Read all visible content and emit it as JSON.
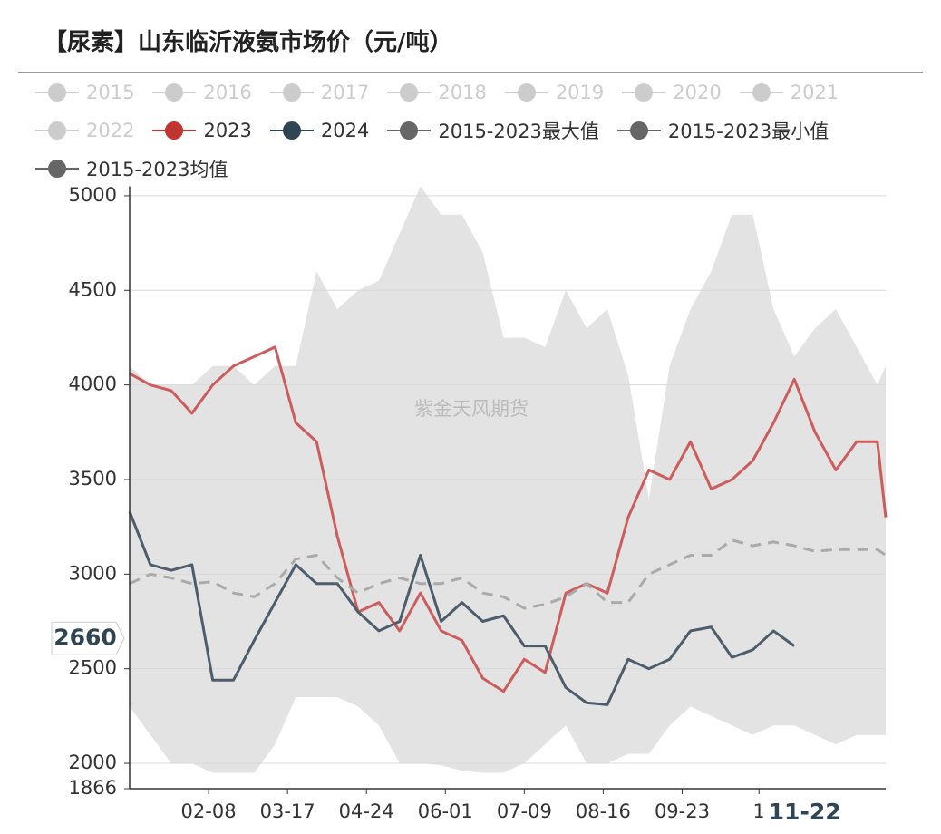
{
  "chart_data": {
    "type": "line",
    "title": "【尿素】山东临沂液氨市场价（元/吨）",
    "watermark": "紫金天风期货",
    "hidden_series": [
      {
        "name": "2015",
        "color": "#cccccc"
      },
      {
        "name": "2016",
        "color": "#cccccc"
      },
      {
        "name": "2017",
        "color": "#cccccc"
      },
      {
        "name": "2018",
        "color": "#cccccc"
      },
      {
        "name": "2019",
        "color": "#cccccc"
      },
      {
        "name": "2020",
        "color": "#cccccc"
      },
      {
        "name": "2021",
        "color": "#cccccc"
      },
      {
        "name": "2022",
        "color": "#cccccc"
      }
    ],
    "x": [
      0,
      10,
      20,
      30,
      40,
      50,
      60,
      70,
      80,
      90,
      100,
      110,
      120,
      130,
      140,
      150,
      160,
      170,
      180,
      190,
      200,
      210,
      220,
      230,
      240,
      250,
      260,
      270,
      280,
      290,
      300,
      310,
      320,
      330,
      340,
      350,
      360,
      364
    ],
    "xlim": [
      0,
      364
    ],
    "xticks": [
      {
        "value": 38,
        "label": "02-08"
      },
      {
        "value": 76,
        "label": "03-17"
      },
      {
        "value": 114,
        "label": "04-24"
      },
      {
        "value": 152,
        "label": "06-01"
      },
      {
        "value": 190,
        "label": "07-09"
      },
      {
        "value": 228,
        "label": "08-16"
      },
      {
        "value": 266,
        "label": "09-23"
      },
      {
        "value": 303,
        "label": "1"
      }
    ],
    "x_pointer": {
      "value": 325,
      "label": "11-22"
    },
    "y_pointer": 2660,
    "ylim": [
      1866,
      5050
    ],
    "yticks": [
      1866,
      2000,
      2500,
      3000,
      3500,
      4000,
      4500,
      5000
    ],
    "grid": true,
    "series": [
      {
        "name": "2023",
        "color": "#c23531",
        "line_color": "#cd5c5c",
        "values": [
          4060,
          4000,
          3970,
          3850,
          4000,
          4100,
          4150,
          4200,
          3800,
          3700,
          3200,
          2800,
          2850,
          2700,
          2900,
          2700,
          2650,
          2450,
          2380,
          2550,
          2480,
          2900,
          2950,
          2900,
          3300,
          3550,
          3500,
          3700,
          3450,
          3500,
          3600,
          3800,
          4030,
          3750,
          3550,
          3700,
          3700,
          3300
        ]
      },
      {
        "name": "2024",
        "color": "#2f4554",
        "line_color": "#4e5d6c",
        "values": [
          3330,
          3050,
          3020,
          3050,
          2440,
          2440,
          2650,
          2850,
          3050,
          2950,
          2950,
          2800,
          2700,
          2750,
          3100,
          2750,
          2850,
          2750,
          2780,
          2620,
          2620,
          2400,
          2320,
          2310,
          2550,
          2500,
          2550,
          2700,
          2720,
          2560,
          2600,
          2700,
          2620,
          null,
          null,
          null,
          null,
          null
        ]
      },
      {
        "name": "2015-2023最大值",
        "color": "#666666",
        "area": "upper",
        "values": [
          4100,
          4000,
          4000,
          4000,
          4100,
          4100,
          4000,
          4100,
          4100,
          4600,
          4400,
          4500,
          4550,
          4800,
          5050,
          4900,
          4900,
          4700,
          4250,
          4250,
          4200,
          4500,
          4300,
          4400,
          4050,
          3400,
          4100,
          4400,
          4600,
          4900,
          4900,
          4400,
          4150,
          4300,
          4400,
          4200,
          4000,
          4100
        ]
      },
      {
        "name": "2015-2023最小值",
        "color": "#666666",
        "area": "lower",
        "values": [
          2300,
          2150,
          2000,
          2000,
          1950,
          1950,
          1950,
          2100,
          2350,
          2350,
          2350,
          2300,
          2200,
          2000,
          2000,
          1990,
          1960,
          1950,
          1950,
          2000,
          2100,
          2200,
          2000,
          2000,
          2050,
          2050,
          2200,
          2300,
          2250,
          2200,
          2150,
          2200,
          2200,
          2150,
          2100,
          2150,
          2150,
          2150
        ]
      },
      {
        "name": "2015-2023均值",
        "color": "#666666",
        "line_color": "#aaaaaa",
        "line_style": "dashed",
        "values": [
          2950,
          3000,
          2980,
          2950,
          2960,
          2900,
          2880,
          2950,
          3080,
          3100,
          2980,
          2900,
          2950,
          2980,
          2950,
          2950,
          2980,
          2900,
          2880,
          2820,
          2840,
          2880,
          2950,
          2850,
          2850,
          3000,
          3050,
          3100,
          3100,
          3180,
          3150,
          3170,
          3150,
          3120,
          3130,
          3130,
          3130,
          3100
        ]
      }
    ]
  }
}
